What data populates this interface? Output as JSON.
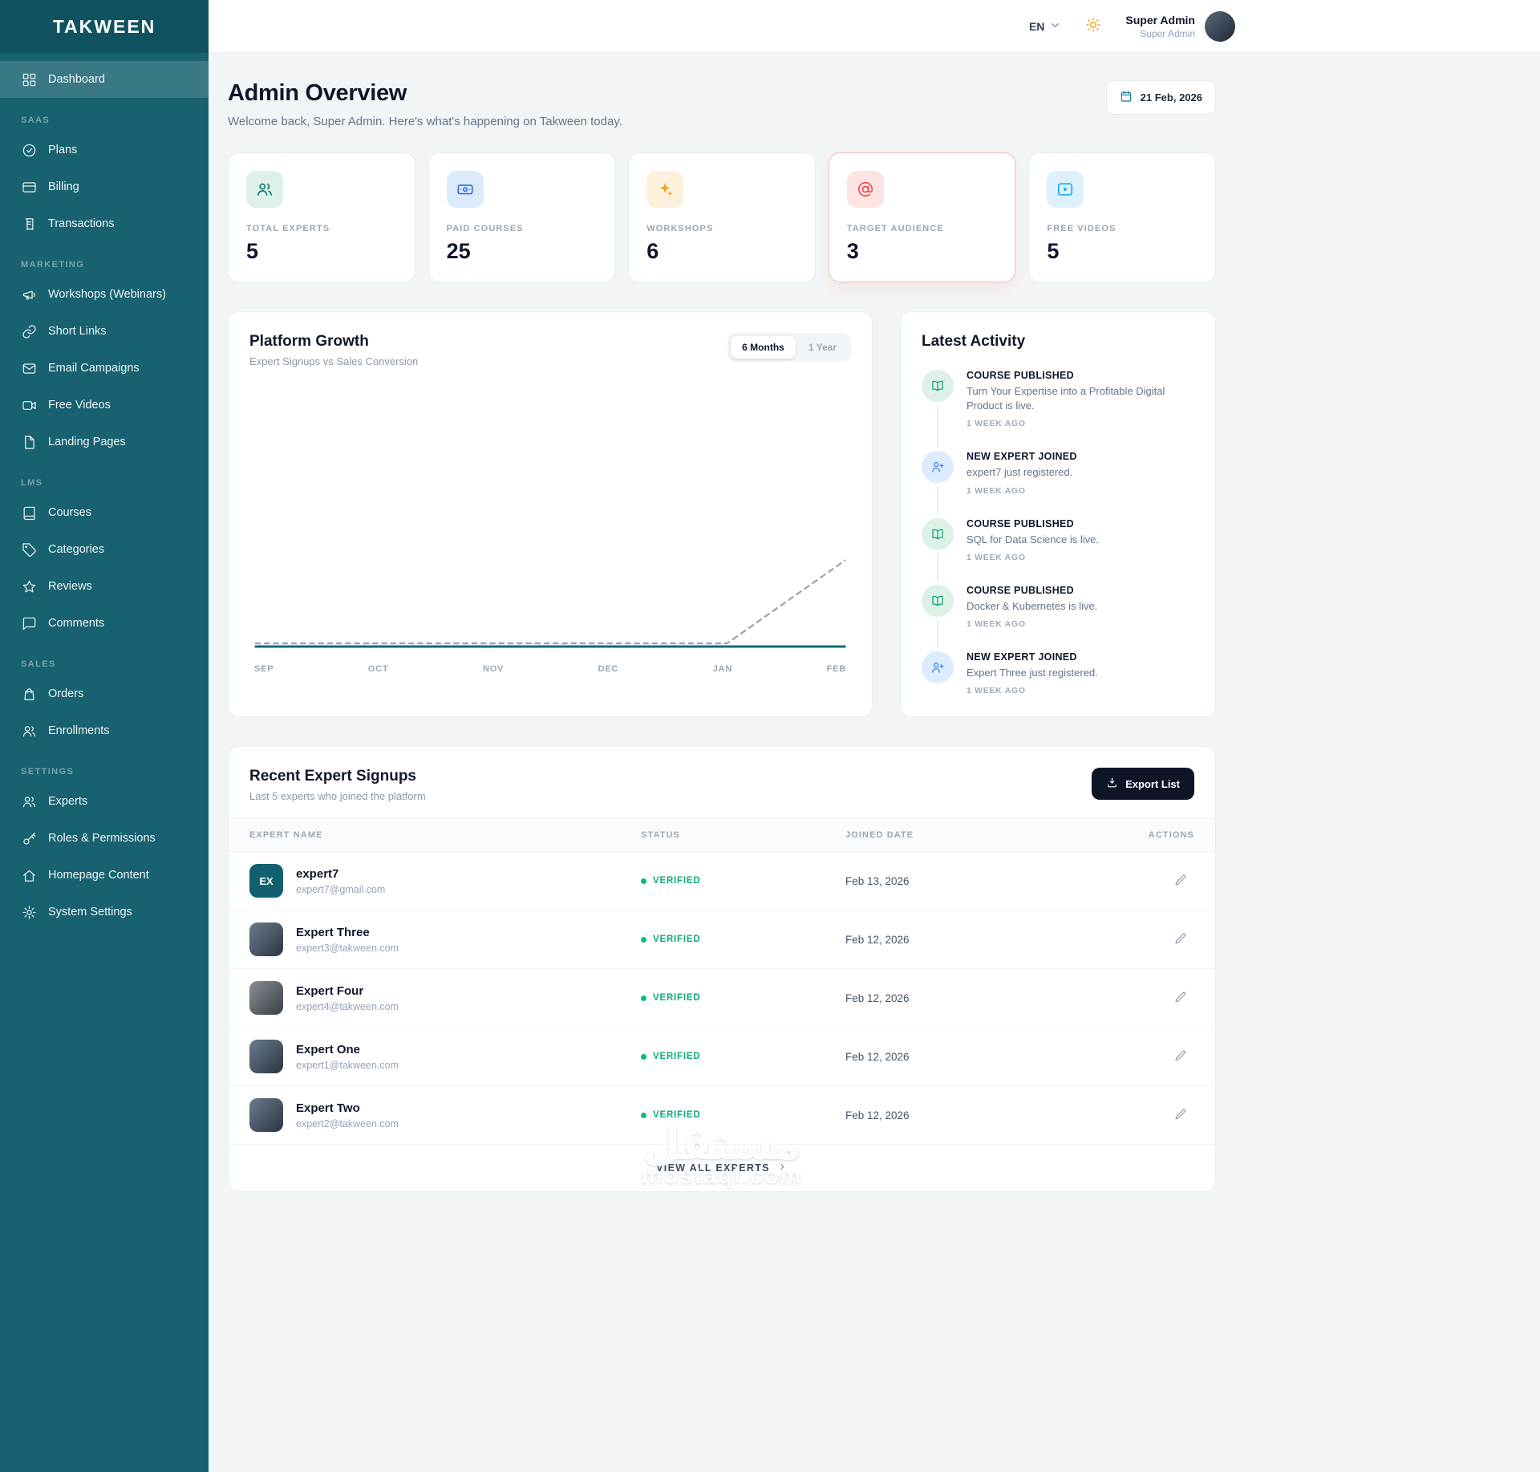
{
  "colors": {
    "sidebar": "#176170",
    "sidebar_logo_bg": "#0f5360",
    "accent_teal": "#0e7490",
    "stat_teal": "#0f766e",
    "stat_blue": "#2563eb",
    "stat_amber": "#f59e0b",
    "stat_red": "#ef4444",
    "stat_sky": "#0ea5e9",
    "verified_green": "#10b981",
    "highlight_border": "#f2b9b6",
    "export_button_bg": "#0d1526"
  },
  "sidebar": {
    "logo": "TAKWEEN",
    "dashboard": "Dashboard",
    "sections": [
      {
        "label": "SAAS",
        "items": [
          {
            "label": "Plans"
          },
          {
            "label": "Billing"
          },
          {
            "label": "Transactions"
          }
        ]
      },
      {
        "label": "MARKETING",
        "items": [
          {
            "label": "Workshops (Webinars)"
          },
          {
            "label": "Short Links"
          },
          {
            "label": "Email Campaigns"
          },
          {
            "label": "Free Videos"
          },
          {
            "label": "Landing Pages"
          }
        ]
      },
      {
        "label": "LMS",
        "items": [
          {
            "label": "Courses"
          },
          {
            "label": "Categories"
          },
          {
            "label": "Reviews"
          },
          {
            "label": "Comments"
          }
        ]
      },
      {
        "label": "SALES",
        "items": [
          {
            "label": "Orders"
          },
          {
            "label": "Enrollments"
          }
        ]
      },
      {
        "label": "SETTINGS",
        "items": [
          {
            "label": "Experts"
          },
          {
            "label": "Roles & Permissions"
          },
          {
            "label": "Homepage Content"
          },
          {
            "label": "System Settings"
          }
        ]
      }
    ]
  },
  "topbar": {
    "language": "EN",
    "user_name": "Super Admin",
    "user_role": "Super Admin"
  },
  "header": {
    "title": "Admin Overview",
    "subtitle": "Welcome back, Super Admin. Here's what's happening on Takween today.",
    "date": "21 Feb, 2026"
  },
  "stats": [
    {
      "label": "TOTAL EXPERTS",
      "value": "5",
      "icon": "users-icon"
    },
    {
      "label": "PAID COURSES",
      "value": "25",
      "icon": "banknote-icon"
    },
    {
      "label": "WORKSHOPS",
      "value": "6",
      "icon": "sparkles-icon"
    },
    {
      "label": "TARGET AUDIENCE",
      "value": "3",
      "icon": "at-sign-icon",
      "highlighted": true
    },
    {
      "label": "FREE VIDEOS",
      "value": "5",
      "icon": "video-play-icon"
    }
  ],
  "growth": {
    "title": "Platform Growth",
    "subtitle": "Expert Signups vs Sales Conversion",
    "ranges": [
      "6 Months",
      "1 Year"
    ],
    "active_range": "6 Months"
  },
  "chart_data": {
    "type": "line",
    "title": "Platform Growth",
    "x": [
      "SEP",
      "OCT",
      "NOV",
      "DEC",
      "JAN",
      "FEB"
    ],
    "series": [
      {
        "name": "Expert Signups",
        "values": [
          0,
          0,
          0,
          0,
          0,
          5
        ],
        "style": "dashed",
        "color": "#9aa7b3"
      },
      {
        "name": "Sales Conversion",
        "values": [
          0,
          0,
          0,
          0,
          0,
          0
        ],
        "style": "solid",
        "color": "#0f6a79"
      }
    ],
    "ylim": [
      0,
      15
    ],
    "grid": false,
    "legend": "none"
  },
  "activity": {
    "title": "Latest Activity",
    "items": [
      {
        "icon": "book-open-icon",
        "type": "course",
        "title": "COURSE PUBLISHED",
        "desc": "Turn Your Expertise into a Profitable Digital Product is live.",
        "time": "1 WEEK AGO"
      },
      {
        "icon": "user-plus-icon",
        "type": "expert",
        "title": "NEW EXPERT JOINED",
        "desc": "expert7 just registered.",
        "time": "1 WEEK AGO"
      },
      {
        "icon": "book-open-icon",
        "type": "course",
        "title": "COURSE PUBLISHED",
        "desc": "SQL for Data Science is live.",
        "time": "1 WEEK AGO"
      },
      {
        "icon": "book-open-icon",
        "type": "course",
        "title": "COURSE PUBLISHED",
        "desc": "Docker & Kubernetes is live.",
        "time": "1 WEEK AGO"
      },
      {
        "icon": "user-plus-icon",
        "type": "expert",
        "title": "NEW EXPERT JOINED",
        "desc": "Expert Three just registered.",
        "time": "1 WEEK AGO"
      }
    ]
  },
  "signups": {
    "title": "Recent Expert Signups",
    "subtitle": "Last 5 experts who joined the platform",
    "export_label": "Export List",
    "columns": [
      "EXPERT NAME",
      "STATUS",
      "JOINED DATE",
      "ACTIONS"
    ],
    "rows": [
      {
        "avatar_text": "EX",
        "avatar_type": "badge",
        "name": "expert7",
        "email": "expert7@gmail.com",
        "status": "VERIFIED",
        "joined": "Feb 13, 2026"
      },
      {
        "avatar_text": "",
        "avatar_type": "photo",
        "name": "Expert Three",
        "email": "expert3@takween.com",
        "status": "VERIFIED",
        "joined": "Feb 12, 2026"
      },
      {
        "avatar_text": "",
        "avatar_type": "photo",
        "name": "Expert Four",
        "email": "expert4@takween.com",
        "status": "VERIFIED",
        "joined": "Feb 12, 2026"
      },
      {
        "avatar_text": "",
        "avatar_type": "photo",
        "name": "Expert One",
        "email": "expert1@takween.com",
        "status": "VERIFIED",
        "joined": "Feb 12, 2026"
      },
      {
        "avatar_text": "",
        "avatar_type": "photo",
        "name": "Expert Two",
        "email": "expert2@takween.com",
        "status": "VERIFIED",
        "joined": "Feb 12, 2026"
      }
    ],
    "view_all": "VIEW ALL EXPERTS"
  },
  "watermark": {
    "line1": "مستقل",
    "line2": "mostaql.com"
  }
}
